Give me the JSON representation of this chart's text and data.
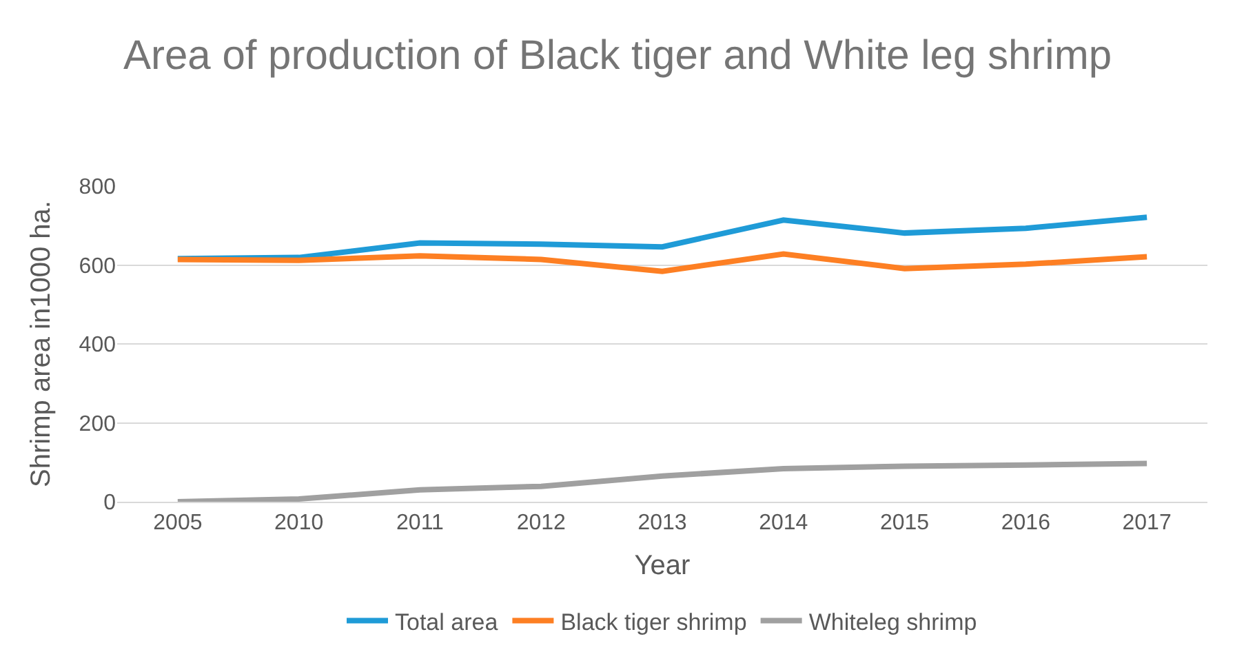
{
  "chart_data": {
    "type": "line",
    "title": "Area of production of Black tiger and White leg shrimp",
    "xlabel": "Year",
    "ylabel": "Shrimp area in1000 ha.",
    "categories": [
      "2005",
      "2010",
      "2011",
      "2012",
      "2013",
      "2014",
      "2015",
      "2016",
      "2017"
    ],
    "series": [
      {
        "name": "Total area",
        "color": "#1f9bd7",
        "values": [
          616,
          619,
          656,
          653,
          646,
          714,
          681,
          693,
          721
        ]
      },
      {
        "name": "Black tiger shrimp",
        "color": "#fd7f23",
        "values": [
          614,
          612,
          623,
          614,
          584,
          628,
          591,
          602,
          621
        ]
      },
      {
        "name": "Whiteleg shrimp",
        "color": "#a0a0a0",
        "values": [
          0,
          7,
          30,
          39,
          65,
          84,
          90,
          93,
          97
        ]
      }
    ],
    "ylim": [
      0,
      800
    ],
    "yticks": [
      0,
      200,
      400,
      600,
      800
    ],
    "grid": "y",
    "legend": "bottom",
    "marker": "none",
    "line_style": "solid"
  }
}
